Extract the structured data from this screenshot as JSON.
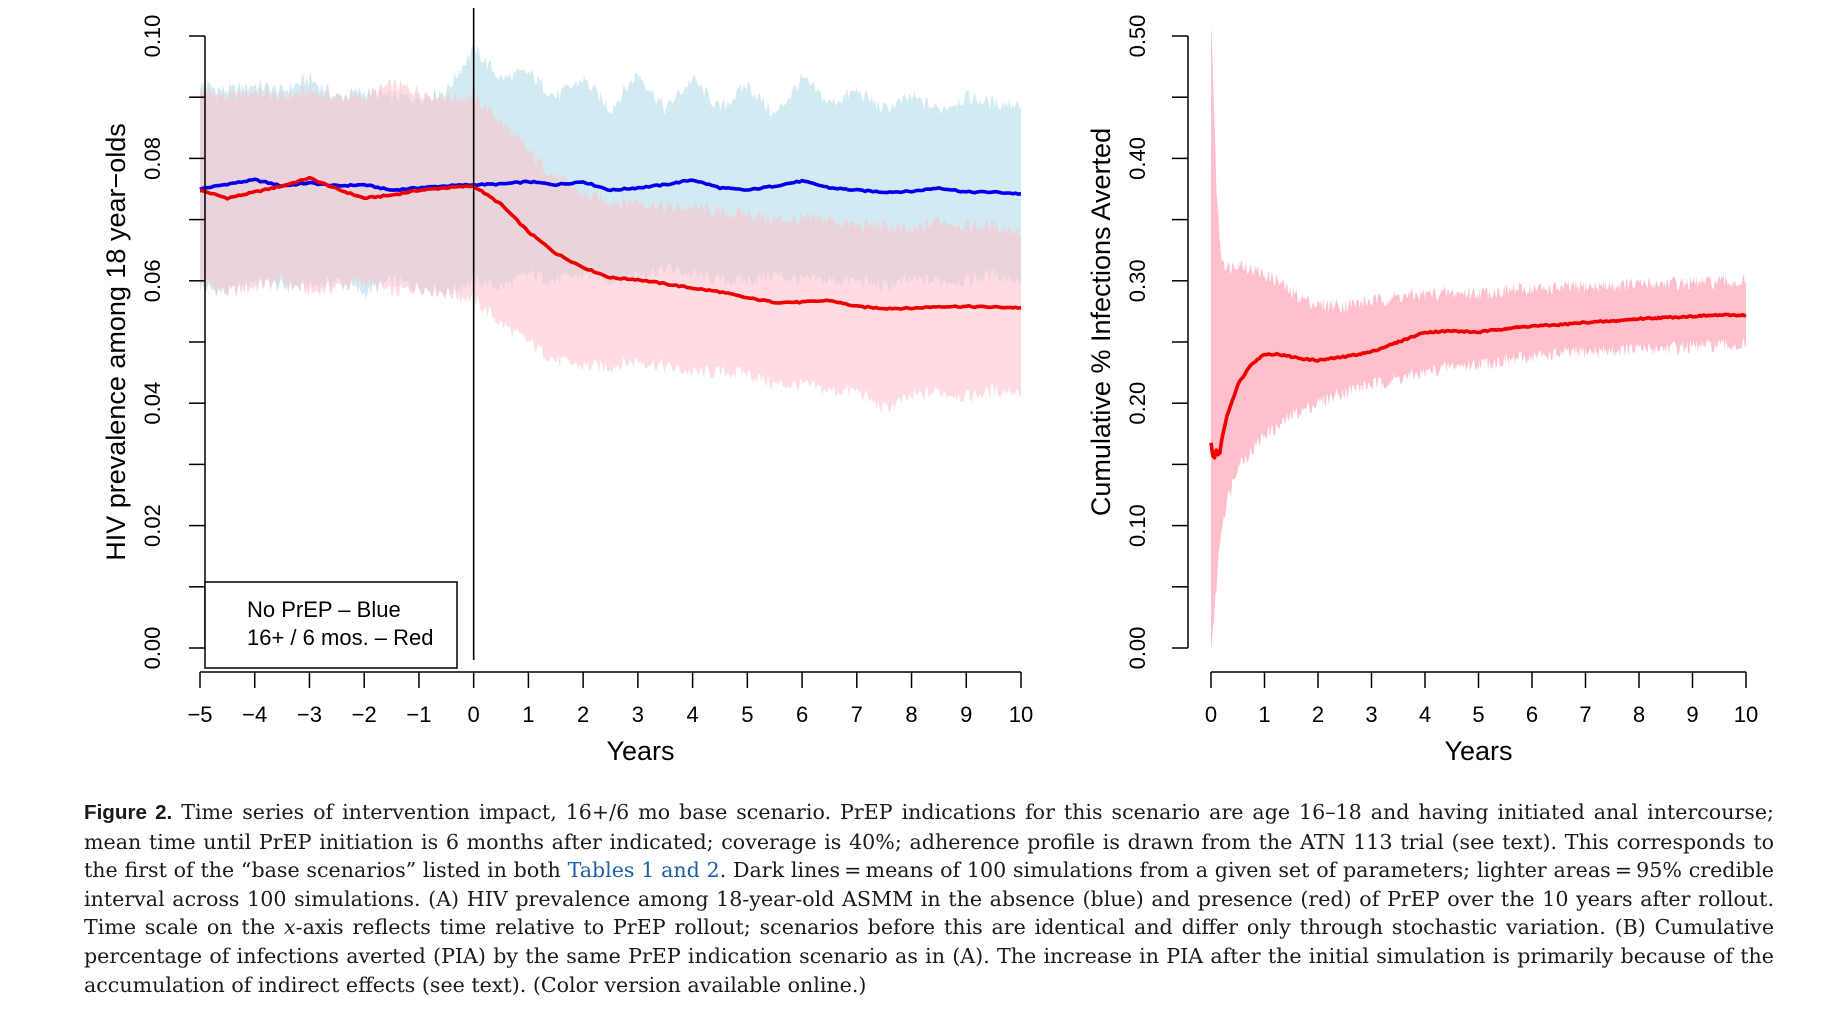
{
  "chart_data": [
    {
      "type": "line",
      "panel": "A",
      "ylabel": "HIV prevalence among 18 year−olds",
      "xlabel": "Years",
      "xlim": [
        -5,
        10
      ],
      "ylim": [
        0,
        0.1
      ],
      "xticks": [
        "−5",
        "−4",
        "−3",
        "−2",
        "−1",
        "0",
        "1",
        "2",
        "3",
        "4",
        "5",
        "6",
        "7",
        "8",
        "9",
        "10"
      ],
      "yticks": [
        "0.00",
        "0.02",
        "0.04",
        "0.06",
        "0.08",
        "0.10"
      ],
      "vline_x": 0,
      "legend": {
        "placement": "bottom-left",
        "lines": [
          "No PrEP – Blue",
          "16+ / 6 mos. – Red"
        ]
      },
      "series": [
        {
          "color": "#0000ee",
          "band_color": "#add8e6",
          "x": [
            -5,
            -4.5,
            -4,
            -3.5,
            -3,
            -2.5,
            -2,
            -1.5,
            -1,
            -0.5,
            0,
            0.5,
            1,
            1.5,
            2,
            2.5,
            3,
            3.5,
            4,
            4.5,
            5,
            5.5,
            6,
            6.5,
            7,
            7.5,
            8,
            8.5,
            9,
            9.5,
            10
          ],
          "mean": [
            0.075,
            0.0758,
            0.0765,
            0.0755,
            0.076,
            0.0755,
            0.0757,
            0.0748,
            0.0752,
            0.0755,
            0.0757,
            0.0758,
            0.0762,
            0.0757,
            0.0762,
            0.0748,
            0.0752,
            0.0757,
            0.0765,
            0.0752,
            0.0748,
            0.0755,
            0.0763,
            0.0752,
            0.0748,
            0.0745,
            0.0746,
            0.0752,
            0.0745,
            0.0745,
            0.0742
          ],
          "lower": [
            0.059,
            0.058,
            0.06,
            0.059,
            0.059,
            0.06,
            0.058,
            0.06,
            0.059,
            0.058,
            0.06,
            0.059,
            0.061,
            0.06,
            0.061,
            0.06,
            0.061,
            0.062,
            0.061,
            0.06,
            0.06,
            0.061,
            0.06,
            0.06,
            0.06,
            0.059,
            0.06,
            0.06,
            0.06,
            0.061,
            0.06
          ],
          "upper": [
            0.092,
            0.091,
            0.092,
            0.091,
            0.093,
            0.09,
            0.091,
            0.09,
            0.09,
            0.091,
            0.098,
            0.093,
            0.094,
            0.09,
            0.093,
            0.088,
            0.094,
            0.088,
            0.093,
            0.088,
            0.092,
            0.087,
            0.093,
            0.089,
            0.091,
            0.088,
            0.09,
            0.088,
            0.09,
            0.089,
            0.089
          ]
        },
        {
          "color": "#ee0000",
          "band_color": "#ffc0cb",
          "x": [
            -5,
            -4.5,
            -4,
            -3.5,
            -3,
            -2.5,
            -2,
            -1.5,
            -1,
            -0.5,
            0,
            0.5,
            1,
            1.5,
            2,
            2.5,
            3,
            3.5,
            4,
            4.5,
            5,
            5.5,
            6,
            6.5,
            7,
            7.5,
            8,
            8.5,
            9,
            9.5,
            10
          ],
          "mean": [
            0.0748,
            0.0735,
            0.0745,
            0.0755,
            0.0768,
            0.075,
            0.0735,
            0.074,
            0.0748,
            0.0752,
            0.0755,
            0.0725,
            0.068,
            0.0645,
            0.0622,
            0.0605,
            0.0602,
            0.0595,
            0.0588,
            0.0582,
            0.0572,
            0.0565,
            0.0565,
            0.0568,
            0.0558,
            0.0555,
            0.0555,
            0.0558,
            0.0558,
            0.0557,
            0.0556
          ],
          "lower": [
            0.06,
            0.058,
            0.059,
            0.06,
            0.058,
            0.059,
            0.06,
            0.058,
            0.059,
            0.058,
            0.057,
            0.053,
            0.05,
            0.047,
            0.046,
            0.046,
            0.047,
            0.046,
            0.045,
            0.045,
            0.045,
            0.043,
            0.043,
            0.042,
            0.042,
            0.039,
            0.041,
            0.042,
            0.041,
            0.042,
            0.042
          ],
          "upper": [
            0.091,
            0.09,
            0.091,
            0.09,
            0.091,
            0.09,
            0.09,
            0.092,
            0.091,
            0.09,
            0.09,
            0.086,
            0.081,
            0.077,
            0.074,
            0.073,
            0.073,
            0.072,
            0.072,
            0.071,
            0.071,
            0.07,
            0.07,
            0.07,
            0.069,
            0.069,
            0.068,
            0.07,
            0.069,
            0.069,
            0.068
          ]
        }
      ]
    },
    {
      "type": "line",
      "panel": "B",
      "ylabel": "Cumulative % Infections Averted",
      "xlabel": "Years",
      "xlim": [
        0,
        10
      ],
      "ylim": [
        0,
        0.5
      ],
      "xticks": [
        "0",
        "1",
        "2",
        "3",
        "4",
        "5",
        "6",
        "7",
        "8",
        "9",
        "10"
      ],
      "yticks": [
        "0.00",
        "0.10",
        "0.20",
        "0.30",
        "0.40",
        "0.50"
      ],
      "series": [
        {
          "color": "#ee0000",
          "band_color": "#ffc0cb",
          "x": [
            0,
            0.05,
            0.1,
            0.15,
            0.2,
            0.3,
            0.5,
            0.75,
            1,
            1.25,
            1.5,
            1.75,
            2,
            2.5,
            3,
            3.5,
            4,
            4.5,
            5,
            5.5,
            6,
            6.5,
            7,
            7.5,
            8,
            8.5,
            9,
            9.5,
            10
          ],
          "mean": [
            0.168,
            0.152,
            0.162,
            0.155,
            0.17,
            0.19,
            0.215,
            0.232,
            0.24,
            0.24,
            0.238,
            0.236,
            0.235,
            0.238,
            0.242,
            0.25,
            0.258,
            0.259,
            0.258,
            0.261,
            0.263,
            0.264,
            0.266,
            0.267,
            0.269,
            0.27,
            0.271,
            0.272,
            0.272
          ],
          "lower": [
            0.0,
            0.02,
            0.05,
            0.08,
            0.1,
            0.12,
            0.15,
            0.16,
            0.175,
            0.18,
            0.19,
            0.195,
            0.2,
            0.21,
            0.215,
            0.22,
            0.225,
            0.23,
            0.232,
            0.235,
            0.238,
            0.24,
            0.242,
            0.243,
            0.244,
            0.245,
            0.246,
            0.247,
            0.247
          ],
          "upper": [
            0.52,
            0.45,
            0.38,
            0.34,
            0.32,
            0.31,
            0.315,
            0.31,
            0.305,
            0.3,
            0.29,
            0.285,
            0.28,
            0.28,
            0.283,
            0.287,
            0.289,
            0.29,
            0.29,
            0.292,
            0.293,
            0.294,
            0.295,
            0.296,
            0.297,
            0.298,
            0.298,
            0.299,
            0.299
          ]
        }
      ]
    }
  ],
  "caption": {
    "label": "Figure 2.",
    "text_1": " Time series of intervention impact, 16+/6 mo base scenario. PrEP indications for this scenario are age 16–18 and having initiated anal intercourse; mean time until PrEP initiation is 6 months after indicated; coverage is 40%; adherence profile is drawn from the ATN 113 trial (see text). This corresponds to the first of the “base scenarios” listed in both ",
    "link": "Tables 1 and 2",
    "text_2": ". Dark lines = means of 100 simulations from a given set of parameters; lighter areas = 95% credible interval across 100 simulations. (A) HIV prevalence among 18-year-old ASMM in the absence (blue) and presence (red) of PrEP over the 10 years after rollout. Time scale on the ",
    "italic": "x",
    "text_3": "-axis reflects time relative to PrEP rollout; scenarios before this are identical and differ only through stochastic variation. (B) Cumulative percentage of infections averted (PIA) by the same PrEP indication scenario as in (A). The increase in PIA after the initial simulation is primarily because of the accumulation of indirect effects (see text). (Color version available online.)"
  }
}
